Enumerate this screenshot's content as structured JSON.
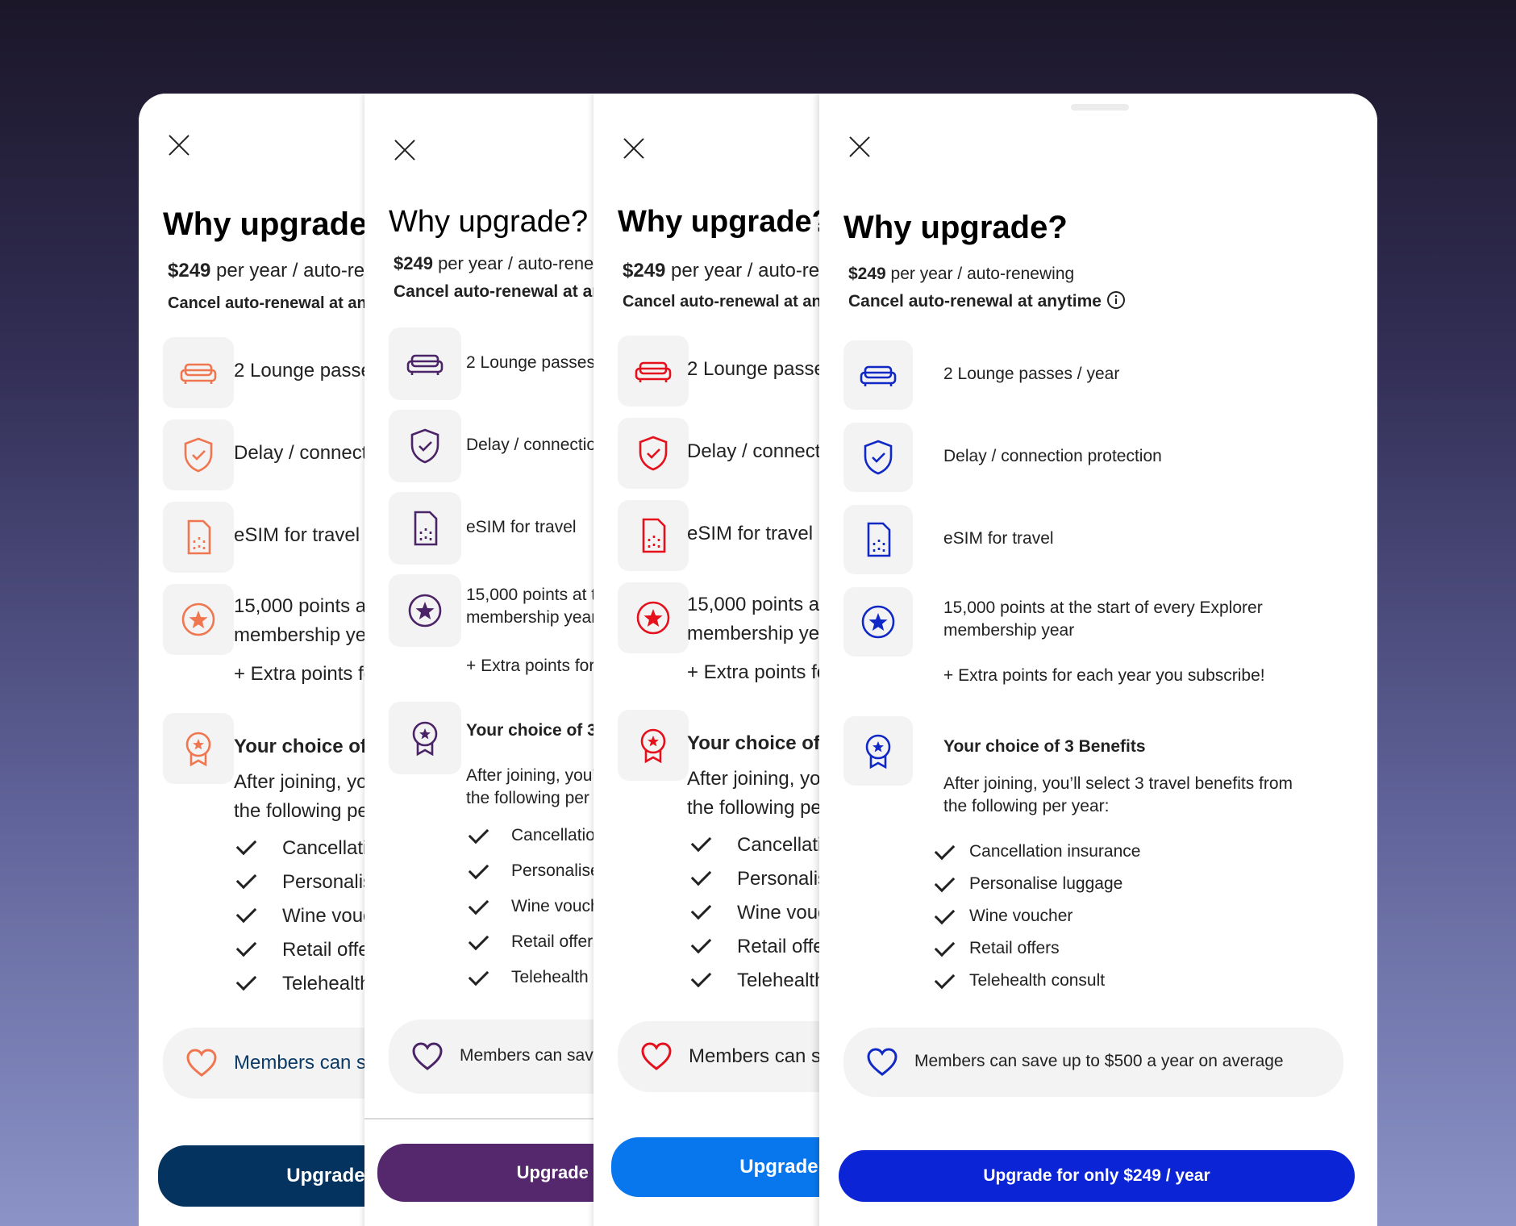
{
  "sheet": {
    "close_icon": "close-icon",
    "title": "Why upgrade?",
    "price_amount": "$249",
    "price_text": " per year / auto-renewing",
    "cancel_text": "Cancel auto-renewal at anytime",
    "info_icon": "info-icon",
    "features": [
      {
        "icon": "sofa-icon",
        "label": "2 Lounge passes / year"
      },
      {
        "icon": "shield-check-icon",
        "label": "Delay / connection protection"
      },
      {
        "icon": "sim-card-icon",
        "label": "eSIM for travel"
      },
      {
        "icon": "star-circle-icon",
        "label_line1": "15,000 points at the start of every Explorer",
        "label_line2": "membership year"
      }
    ],
    "extra_points": "+ Extra points for each year you subscribe!",
    "benefits": {
      "icon": "award-ribbon-icon",
      "heading": "Your choice of 3 Benefits",
      "intro_line1": "After joining, you’ll select 3 travel benefits from",
      "intro_line2": "the following per year:",
      "items": [
        "Cancellation insurance",
        "Personalise luggage",
        "Wine voucher",
        "Retail offers",
        "Telehealth consult"
      ]
    },
    "savings": {
      "icon": "heart-icon",
      "text": "Members can save up to $500 a year on average"
    },
    "cta": "Upgrade for only $249 / year"
  },
  "themes": [
    {
      "name": "navy",
      "accent": "#f0764f",
      "title_color": "#0b3a66",
      "savings_text": "#0b3a66",
      "cta_bg": "#053360"
    },
    {
      "name": "purple",
      "accent": "#4b2468",
      "title_color": "#222222",
      "savings_text": "#222222",
      "cta_bg": "#55286e"
    },
    {
      "name": "red",
      "accent": "#e5101c",
      "title_color": "#111111",
      "savings_text": "#222222",
      "cta_bg": "#0877ee"
    },
    {
      "name": "blue",
      "accent": "#1029c6",
      "title_color": "#1029cf",
      "savings_text": "#222222",
      "cta_bg": "#0a24d6"
    }
  ]
}
